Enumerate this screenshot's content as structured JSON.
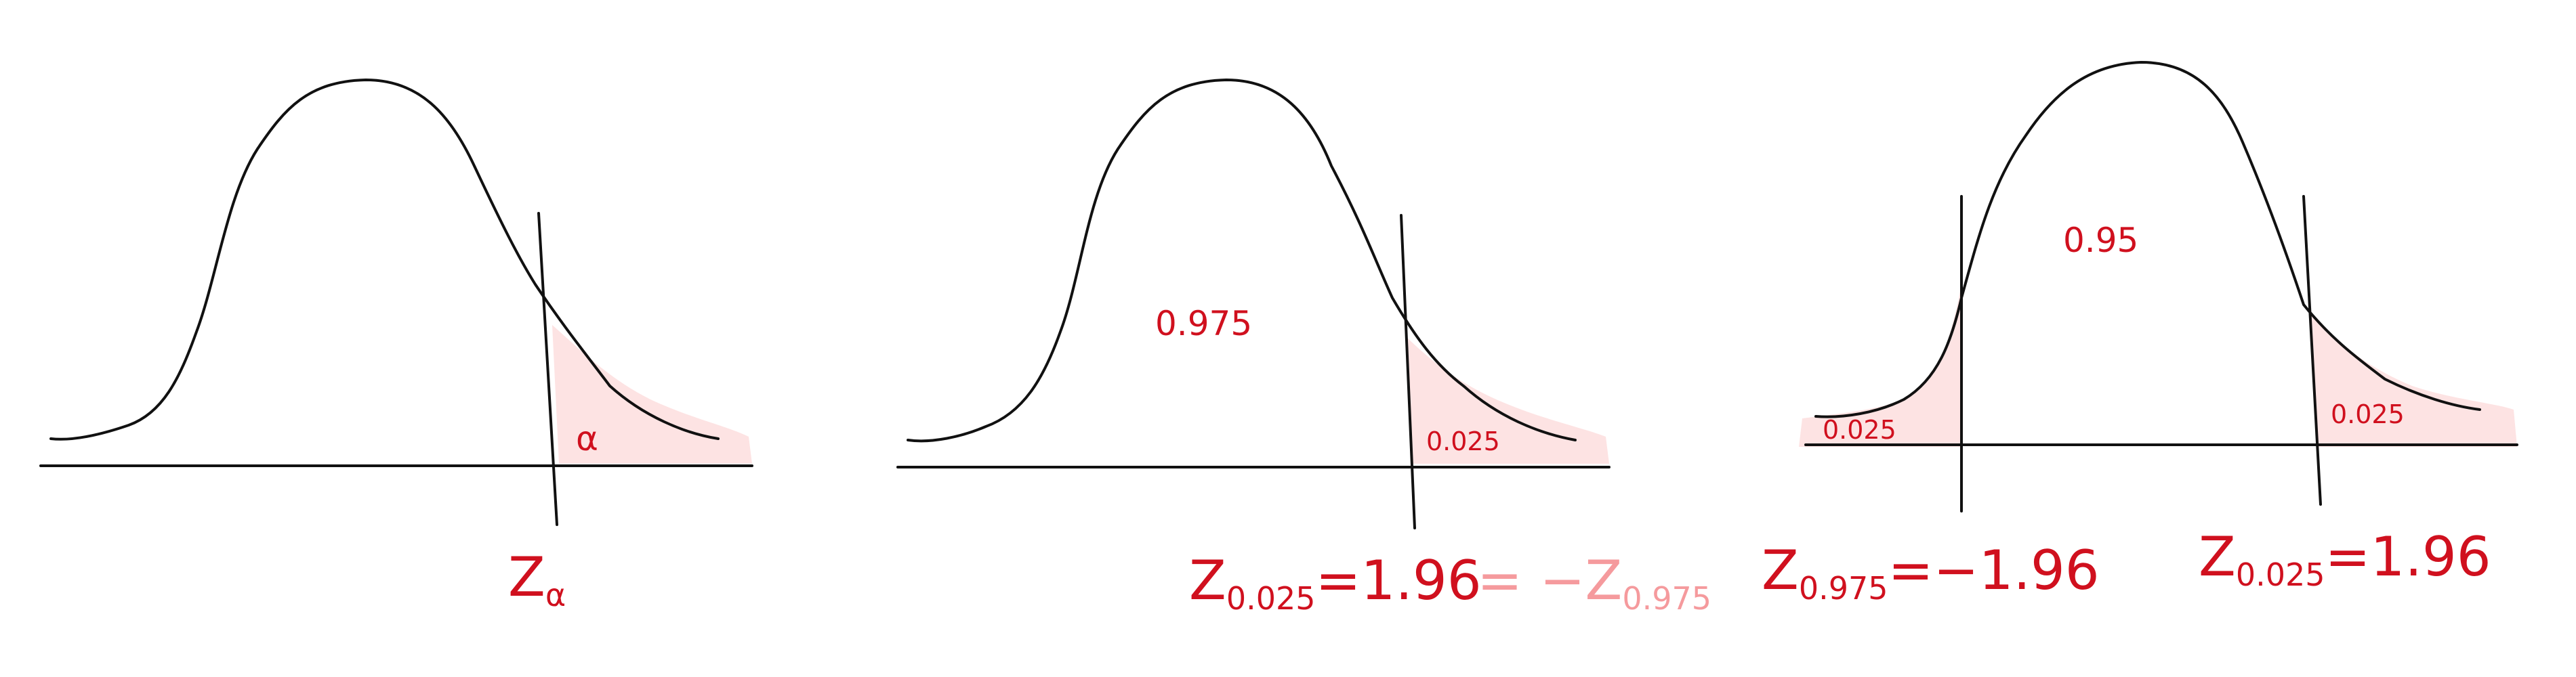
{
  "panel1": {
    "tail_label": "α",
    "z_label_main": "Z",
    "z_label_sub": "α"
  },
  "panel2": {
    "center_label": "0.975",
    "tail_label": "0.025",
    "eq_z": "Z",
    "eq_sub": "0.025",
    "eq_value": "=1.96",
    "eq_alt_eq": "= −",
    "eq_alt_z": "Z",
    "eq_alt_sub": "0.975"
  },
  "panel3": {
    "center_label": "0.95",
    "left_tail_label": "0.025",
    "right_tail_label": "0.025",
    "left_eq_z": "Z",
    "left_eq_sub": "0.975",
    "left_eq_value": "=−1.96",
    "right_eq_z": "Z",
    "right_eq_sub": "0.025",
    "right_eq_value": "=1.96"
  },
  "colors": {
    "ink": "#111111",
    "annotation_red": "#d0101e",
    "annotation_faded": "#f59a9d",
    "tail_shade": "#fde3e3"
  }
}
